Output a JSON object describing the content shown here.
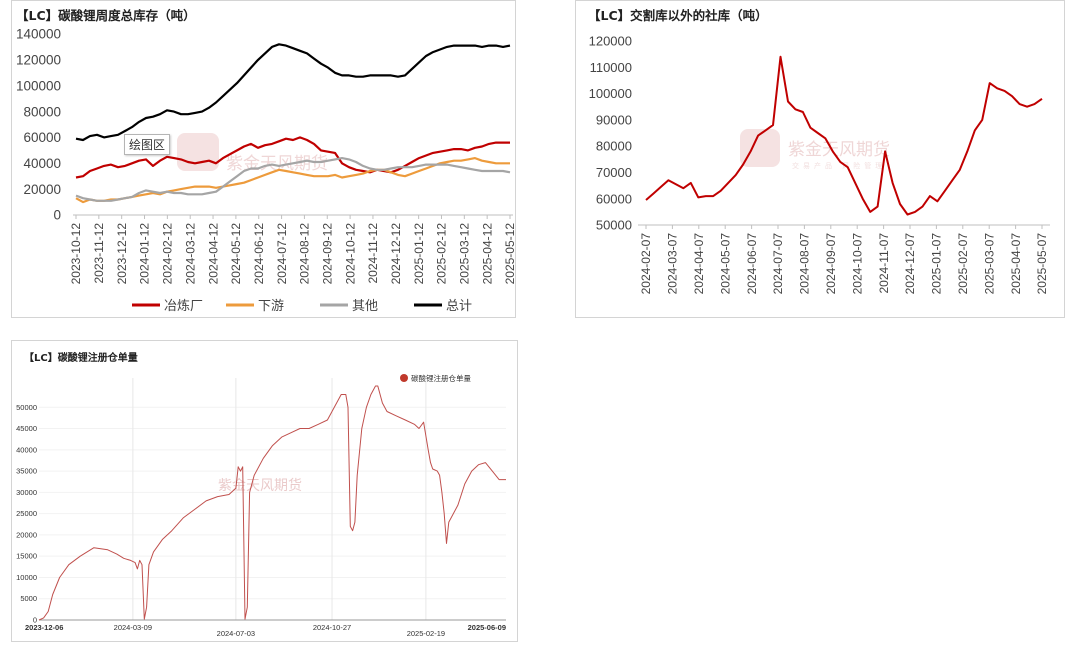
{
  "chart_data": [
    {
      "type": "line",
      "title": "【LC】碳酸锂周度总库存（吨）",
      "tooltip": "绘图区",
      "xlabel": "",
      "ylabel": "",
      "ylim": [
        0,
        140000
      ],
      "yticks": [
        "0",
        "20000",
        "40000",
        "60000",
        "80000",
        "100000",
        "120000",
        "140000"
      ],
      "xticks": [
        "2023-10-12",
        "2023-11-12",
        "2023-12-12",
        "2024-01-12",
        "2024-02-12",
        "2024-03-12",
        "2024-04-12",
        "2024-05-12",
        "2024-06-12",
        "2024-07-12",
        "2024-08-12",
        "2024-09-12",
        "2024-10-12",
        "2024-11-12",
        "2024-12-12",
        "2025-01-12",
        "2025-02-12",
        "2025-03-12",
        "2025-04-12",
        "2025-05-12"
      ],
      "legend_position": "bottom",
      "series": [
        {
          "name": "冶炼厂",
          "color": "#c00000",
          "values": [
            29000,
            30000,
            34000,
            36000,
            38000,
            39000,
            37000,
            38000,
            40000,
            42000,
            43000,
            38000,
            42000,
            45000,
            44000,
            43000,
            41000,
            40000,
            41000,
            42000,
            40000,
            44000,
            47000,
            50000,
            53000,
            55000,
            52000,
            54000,
            55000,
            57000,
            59000,
            58000,
            60000,
            58000,
            55000,
            50000,
            49000,
            48000,
            40000,
            37000,
            35000,
            34000,
            33000,
            35000,
            34000,
            33000,
            35000,
            38000,
            41000,
            44000,
            46000,
            48000,
            49000,
            50000,
            51000,
            51000,
            50000,
            52000,
            53000,
            55000,
            56000,
            56000,
            56000
          ]
        },
        {
          "name": "下游",
          "color": "#ed9b3c",
          "values": [
            13000,
            10000,
            12000,
            11000,
            11000,
            12000,
            12000,
            13000,
            14000,
            15000,
            16000,
            17000,
            16000,
            18000,
            19000,
            20000,
            21000,
            22000,
            22000,
            22000,
            21000,
            22000,
            23000,
            24000,
            25000,
            27000,
            29000,
            31000,
            33000,
            35000,
            34000,
            33000,
            32000,
            31000,
            30000,
            30000,
            30000,
            31000,
            29000,
            30000,
            31000,
            32000,
            34000,
            35000,
            35000,
            33000,
            31000,
            30000,
            32000,
            34000,
            36000,
            38000,
            40000,
            41000,
            42000,
            42000,
            43000,
            44000,
            42000,
            41000,
            40000,
            40000,
            40000
          ]
        },
        {
          "name": "其他",
          "color": "#a5a5a5",
          "values": [
            15000,
            13000,
            12000,
            11000,
            11000,
            11000,
            12000,
            13000,
            14000,
            17000,
            19000,
            18000,
            17000,
            18000,
            17000,
            17000,
            16000,
            16000,
            16000,
            17000,
            18000,
            22000,
            26000,
            30000,
            34000,
            36000,
            36000,
            38000,
            39000,
            38000,
            39000,
            40000,
            41000,
            42000,
            41000,
            41000,
            42000,
            43000,
            44000,
            43000,
            41000,
            38000,
            36000,
            35000,
            35000,
            36000,
            37000,
            37000,
            37000,
            38000,
            39000,
            39000,
            39000,
            39000,
            38000,
            37000,
            36000,
            35000,
            34000,
            34000,
            34000,
            34000,
            33000
          ]
        },
        {
          "name": "总计",
          "color": "#000000",
          "values": [
            59000,
            58000,
            61000,
            62000,
            60000,
            61000,
            62000,
            65000,
            68000,
            72000,
            75000,
            76000,
            78000,
            81000,
            80000,
            78000,
            78000,
            79000,
            80000,
            83000,
            87000,
            92000,
            97000,
            102000,
            108000,
            114000,
            120000,
            125000,
            130000,
            132000,
            131000,
            129000,
            127000,
            125000,
            121000,
            117000,
            114000,
            110000,
            108000,
            108000,
            107000,
            107000,
            108000,
            108000,
            108000,
            108000,
            107000,
            108000,
            113000,
            118000,
            123000,
            126000,
            128000,
            130000,
            131000,
            131000,
            131000,
            131000,
            130000,
            131000,
            131000,
            130000,
            131000
          ]
        }
      ]
    },
    {
      "type": "line",
      "title": "【LC】交割库以外的社库（吨）",
      "xlabel": "",
      "ylabel": "",
      "ylim": [
        50000,
        120000
      ],
      "yticks": [
        "50000",
        "60000",
        "70000",
        "80000",
        "90000",
        "100000",
        "110000",
        "120000"
      ],
      "xticks": [
        "2024-02-07",
        "2024-03-07",
        "2024-04-07",
        "2024-05-07",
        "2024-06-07",
        "2024-07-07",
        "2024-08-07",
        "2024-09-07",
        "2024-10-07",
        "2024-11-07",
        "2024-12-07",
        "2025-01-07",
        "2025-02-07",
        "2025-03-07",
        "2025-04-07",
        "2025-05-07"
      ],
      "series": [
        {
          "name": "",
          "color": "#c00000",
          "values": [
            59500,
            62000,
            64500,
            67000,
            65500,
            64000,
            66000,
            60500,
            61000,
            61000,
            63000,
            66000,
            69000,
            73000,
            78000,
            84000,
            86000,
            88000,
            114000,
            97000,
            94000,
            93000,
            87000,
            85000,
            83000,
            78000,
            74000,
            72000,
            66000,
            60000,
            55000,
            57000,
            78000,
            66000,
            58000,
            54000,
            55000,
            57000,
            61000,
            59000,
            63000,
            67000,
            71000,
            78000,
            86000,
            90000,
            104000,
            102000,
            101000,
            99000,
            96000,
            95000,
            96000,
            98000
          ]
        }
      ]
    },
    {
      "type": "line",
      "title": "【LC】碳酸锂注册仓单量",
      "xlabel": "",
      "ylabel": "",
      "ylim": [
        0,
        55000
      ],
      "yticks": [
        "0",
        "5000",
        "10000",
        "15000",
        "20000",
        "25000",
        "30000",
        "35000",
        "40000",
        "45000",
        "50000"
      ],
      "xticks": [
        "2023-12-06",
        "2024-03-09",
        "2024-07-03",
        "2024-10-27",
        "2025-02-19",
        "2025-06-09"
      ],
      "legend_position": "top-right",
      "series": [
        {
          "name": "碳酸锂注册仓单量",
          "color": "#c0504d",
          "points": [
            [
              0,
              0
            ],
            [
              2,
              500
            ],
            [
              4,
              2000
            ],
            [
              6,
              6000
            ],
            [
              9,
              10000
            ],
            [
              13,
              13000
            ],
            [
              18,
              15000
            ],
            [
              24,
              17000
            ],
            [
              30,
              16500
            ],
            [
              34,
              15500
            ],
            [
              37,
              14500
            ],
            [
              40,
              14000
            ],
            [
              42,
              13500
            ],
            [
              43,
              12000
            ],
            [
              44,
              14000
            ],
            [
              45,
              13000
            ],
            [
              46,
              200
            ],
            [
              47,
              3000
            ],
            [
              48,
              13000
            ],
            [
              50,
              16000
            ],
            [
              54,
              19000
            ],
            [
              58,
              21000
            ],
            [
              63,
              24000
            ],
            [
              68,
              26000
            ],
            [
              73,
              28000
            ],
            [
              78,
              29000
            ],
            [
              83,
              29500
            ],
            [
              86,
              31000
            ],
            [
              87,
              36000
            ],
            [
              88,
              35000
            ],
            [
              89,
              36000
            ],
            [
              90,
              200
            ],
            [
              91,
              3000
            ],
            [
              92,
              30000
            ],
            [
              94,
              34000
            ],
            [
              98,
              38000
            ],
            [
              102,
              41000
            ],
            [
              106,
              43000
            ],
            [
              110,
              44000
            ],
            [
              114,
              45000
            ],
            [
              118,
              45000
            ],
            [
              122,
              46000
            ],
            [
              126,
              47000
            ],
            [
              130,
              51000
            ],
            [
              132,
              53000
            ],
            [
              134,
              53000
            ],
            [
              135,
              50000
            ],
            [
              136,
              22000
            ],
            [
              137,
              21000
            ],
            [
              138,
              23000
            ],
            [
              139,
              34000
            ],
            [
              141,
              45000
            ],
            [
              143,
              50000
            ],
            [
              145,
              53000
            ],
            [
              147,
              55000
            ],
            [
              148,
              55000
            ],
            [
              150,
              51000
            ],
            [
              152,
              49000
            ],
            [
              156,
              48000
            ],
            [
              160,
              47000
            ],
            [
              164,
              46000
            ],
            [
              166,
              45000
            ],
            [
              168,
              46500
            ],
            [
              170,
              40000
            ],
            [
              171,
              37000
            ],
            [
              172,
              35500
            ],
            [
              174,
              35000
            ],
            [
              175,
              34000
            ],
            [
              176,
              30000
            ],
            [
              177,
              25000
            ],
            [
              178,
              18000
            ],
            [
              179,
              23000
            ],
            [
              180,
              24000
            ],
            [
              183,
              27000
            ],
            [
              186,
              32000
            ],
            [
              189,
              35000
            ],
            [
              192,
              36500
            ],
            [
              195,
              37000
            ],
            [
              198,
              35000
            ],
            [
              201,
              33000
            ],
            [
              204,
              33000
            ]
          ]
        }
      ]
    }
  ]
}
